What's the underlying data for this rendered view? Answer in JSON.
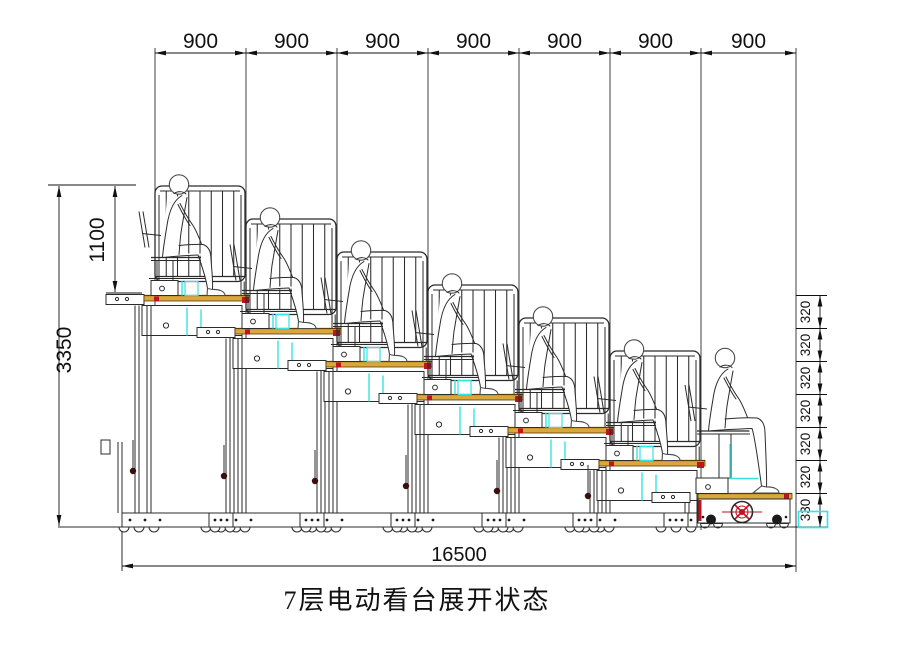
{
  "title": "7层电动看台展开状态",
  "drawing": {
    "type": "technical-elevation",
    "description_visible_rows": 7,
    "seated_figures": 7,
    "top_dimensions": [
      "900",
      "900",
      "900",
      "900",
      "900",
      "900",
      "900"
    ],
    "left_dimensions": {
      "guardrail_height": "1100",
      "overall_height": "3350"
    },
    "right_dimensions": {
      "step_rises": [
        "320",
        "320",
        "320",
        "320",
        "320",
        "320"
      ],
      "bottom_height": "330"
    },
    "bottom_dimension": "16500",
    "units": [
      {
        "guardrail": true,
        "powered": false
      },
      {
        "guardrail": true,
        "powered": false
      },
      {
        "guardrail": true,
        "powered": false
      },
      {
        "guardrail": true,
        "powered": false
      },
      {
        "guardrail": true,
        "powered": false
      },
      {
        "guardrail": true,
        "powered": false
      },
      {
        "guardrail": false,
        "powered": true
      }
    ]
  },
  "colors": {
    "line": "#2b2b2b",
    "figure": "#4a4a4a",
    "dim": "#111111",
    "deck_fill": "#D9A73C",
    "deck_edge": "#5a3c00",
    "accent_red": "#C1121F",
    "accent_cyan": "#35E3E3",
    "wheel_dark": "#1a1a1a",
    "knob_dark": "#3a0f0f",
    "background": "#ffffff"
  }
}
